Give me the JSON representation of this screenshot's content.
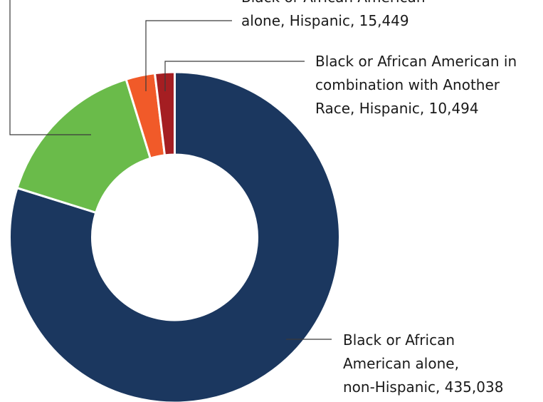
{
  "chart_data": {
    "type": "pie",
    "variant": "donut",
    "series": [
      {
        "name": "",
        "values": [
          435038,
          84000,
          15449,
          10494
        ]
      }
    ],
    "slices": [
      {
        "label_lines": [
          "Black or African",
          "American alone,",
          "non-Hispanic, 435,038"
        ],
        "value": 435038,
        "color": "#1b375f"
      },
      {
        "label_lines": [],
        "value": 84000,
        "color": "#6abb4a"
      },
      {
        "label_lines": [
          "Black or African American",
          "alone, Hispanic, 15,449"
        ],
        "value": 15449,
        "color": "#f15a29"
      },
      {
        "label_lines": [
          "Black or African American in",
          "combination with Another",
          "Race, Hispanic, 10,494"
        ],
        "value": 10494,
        "color": "#a51e22"
      }
    ],
    "start_angle_deg": 0,
    "direction": "clockwise",
    "legend": "none"
  }
}
